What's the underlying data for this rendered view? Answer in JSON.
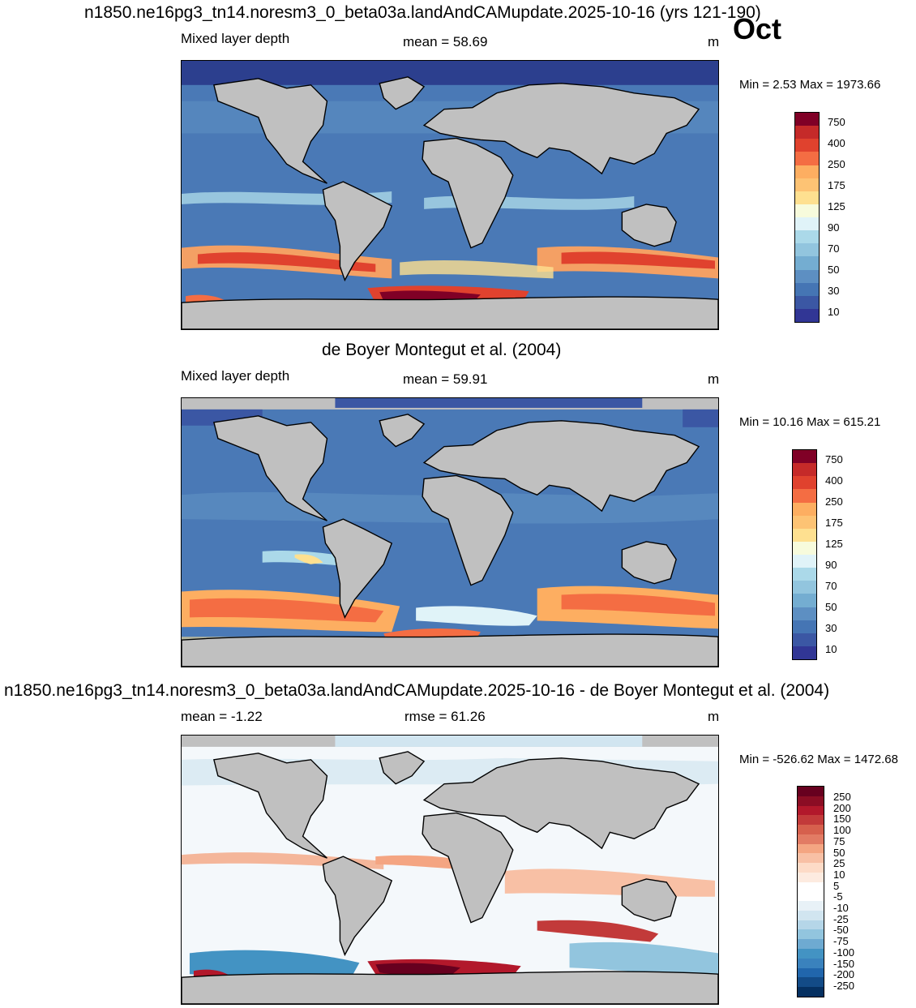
{
  "header": {
    "title": "n1850.ne16pg3_tn14.noresm3_0_beta03a.landAndCAMupdate.2025-10-16 (yrs 121-190)",
    "month": "Oct"
  },
  "panels": [
    {
      "title": "",
      "left_label": "Mixed layer depth",
      "center_label": "mean =  58.69",
      "unit": "m",
      "minmax": "Min =   2.53 Max = 1973.66",
      "colorbar": {
        "colors": [
          "#313695",
          "#3b57a4",
          "#4575b4",
          "#5d8fc2",
          "#74add1",
          "#92c5de",
          "#abd9e9",
          "#e0f3f8",
          "#f7fbdc",
          "#fee090",
          "#fdc374",
          "#fdae61",
          "#f46d43",
          "#e0422e",
          "#c52a29",
          "#800026"
        ],
        "labels": [
          "750",
          "400",
          "250",
          "175",
          "125",
          "90",
          "70",
          "50",
          "30",
          "10"
        ]
      }
    },
    {
      "title": "de Boyer Montegut et al. (2004)",
      "left_label": "Mixed layer depth",
      "center_label": "mean =  59.91",
      "unit": "m",
      "minmax": "Min =  10.16 Max = 615.21",
      "colorbar": {
        "colors": [
          "#313695",
          "#3b57a4",
          "#4575b4",
          "#5d8fc2",
          "#74add1",
          "#92c5de",
          "#abd9e9",
          "#e0f3f8",
          "#f7fbdc",
          "#fee090",
          "#fdc374",
          "#fdae61",
          "#f46d43",
          "#e0422e",
          "#c52a29",
          "#800026"
        ],
        "labels": [
          "750",
          "400",
          "250",
          "175",
          "125",
          "90",
          "70",
          "50",
          "30",
          "10"
        ]
      }
    },
    {
      "title": "n1850.ne16pg3_tn14.noresm3_0_beta03a.landAndCAMupdate.2025-10-16 - de Boyer Montegut et al. (2004)",
      "left_label": "mean =  -1.22",
      "center_label": "rmse =  61.26",
      "unit": "m",
      "minmax": "Min = -526.62 Max = 1472.68",
      "colorbar": {
        "colors": [
          "#053061",
          "#134b87",
          "#2166ac",
          "#3a82bd",
          "#4393c3",
          "#6eaad1",
          "#92c5de",
          "#b5d6e8",
          "#d1e5f0",
          "#e8f1f7",
          "#ffffff",
          "#ffffff",
          "#fdebe0",
          "#fddbc7",
          "#f8c0a5",
          "#f4a582",
          "#e27b64",
          "#d6604d",
          "#c23a3a",
          "#b2182b",
          "#8b0d24",
          "#67001f"
        ],
        "labels": [
          "250",
          "200",
          "150",
          "100",
          "75",
          "50",
          "25",
          "10",
          "5",
          "-5",
          "-10",
          "-25",
          "-50",
          "-75",
          "-100",
          "-150",
          "-200",
          "-250"
        ]
      }
    }
  ]
}
